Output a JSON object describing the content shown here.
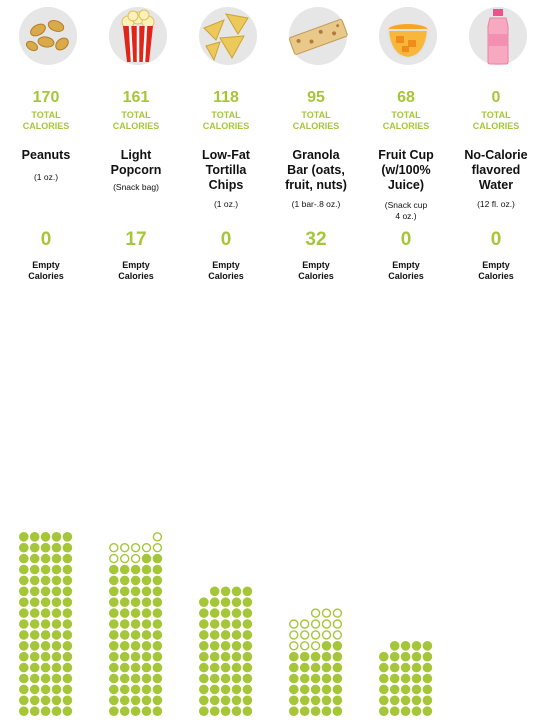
{
  "colors": {
    "accent": "#a6c63a",
    "empty_stroke": "#a6c63a",
    "icon_bg": "#e6e6e6"
  },
  "labels": {
    "total_word": "TOTAL",
    "calories_word": "CALORIES",
    "empty_word": "Empty",
    "empty_cal_word": "Calories"
  },
  "items": [
    {
      "icon": "peanuts-icon",
      "total": "170",
      "name": "Peanuts",
      "serving": "(1 oz.)",
      "empty": "0"
    },
    {
      "icon": "popcorn-icon",
      "total": "161",
      "name": "Light\nPopcorn",
      "serving": "(Snack bag)",
      "empty": "17"
    },
    {
      "icon": "tortilla-chips-icon",
      "total": "118",
      "name": "Low-Fat\nTortilla\nChips",
      "serving": "(1 oz.)",
      "empty": "0"
    },
    {
      "icon": "granola-bar-icon",
      "total": "95",
      "name": "Granola\nBar (oats,\nfruit, nuts)",
      "serving": "(1 bar-.8 oz.)",
      "empty": "32"
    },
    {
      "icon": "fruit-cup-icon",
      "total": "68",
      "name": "Fruit Cup\n(w/100%\nJuice)",
      "serving": "(Snack cup\n4 oz.)",
      "empty": "0"
    },
    {
      "icon": "water-bottle-icon",
      "total": "0",
      "name": "No-Calorie\nflavored\nWater",
      "serving": "(12 fl. oz.)",
      "empty": "0"
    }
  ],
  "chart_data": {
    "type": "table",
    "categories": [
      "Peanuts",
      "Light Popcorn",
      "Low-Fat Tortilla Chips",
      "Granola Bar (oats, fruit, nuts)",
      "Fruit Cup (w/100% Juice)",
      "No-Calorie flavored Water"
    ],
    "series": [
      {
        "name": "TOTAL CALORIES",
        "values": [
          170,
          161,
          118,
          95,
          68,
          0
        ]
      },
      {
        "name": "Empty Calories",
        "values": [
          0,
          17,
          0,
          32,
          0,
          0
        ]
      }
    ]
  }
}
